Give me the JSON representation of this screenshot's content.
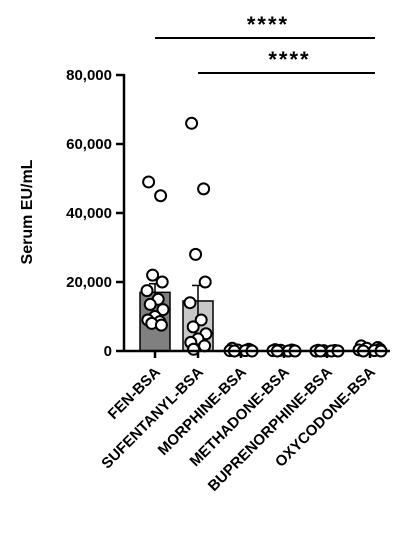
{
  "chart_data": {
    "type": "bar",
    "ylabel": "Serum EU/mL",
    "ylim": [
      0,
      80000
    ],
    "yticks": [
      0,
      20000,
      40000,
      60000,
      80000
    ],
    "ytick_labels": [
      "0",
      "20,000",
      "40,000",
      "60,000",
      "80,000"
    ],
    "categories": [
      "FEN-BSA",
      "SUFENTANYL-BSA",
      "MORPHINE-BSA",
      "METHADONE-BSA",
      "BUPRENORPHINE-BSA",
      "OXYCODONE-BSA"
    ],
    "bar_colors": [
      "#808080",
      "#c8c8c8",
      "#c8c8c8",
      "#c8c8c8",
      "#c8c8c8",
      "#c8c8c8"
    ],
    "values": [
      17000,
      14500,
      300,
      200,
      100,
      400
    ],
    "errors": [
      2500,
      4500,
      150,
      100,
      80,
      200
    ],
    "points": [
      [
        49000,
        45000,
        22000,
        20000,
        17500,
        15000,
        13500,
        12000,
        10000,
        9000,
        8500,
        8000,
        7500
      ],
      [
        66000,
        47000,
        28000,
        20000,
        14000,
        9000,
        7000,
        5000,
        3500,
        2500,
        1500,
        500
      ],
      [
        800,
        500,
        300,
        200,
        100,
        100,
        0,
        0
      ],
      [
        400,
        300,
        200,
        100,
        100,
        0,
        0,
        0
      ],
      [
        200,
        150,
        100,
        50,
        0,
        0,
        0,
        0
      ],
      [
        1500,
        1000,
        800,
        500,
        300,
        100,
        0,
        0
      ]
    ],
    "significance": [
      {
        "from": 0,
        "to": 5,
        "label": "****"
      },
      {
        "from": 1,
        "to": 5,
        "label": "****"
      }
    ],
    "grid": false,
    "legend": "none"
  }
}
